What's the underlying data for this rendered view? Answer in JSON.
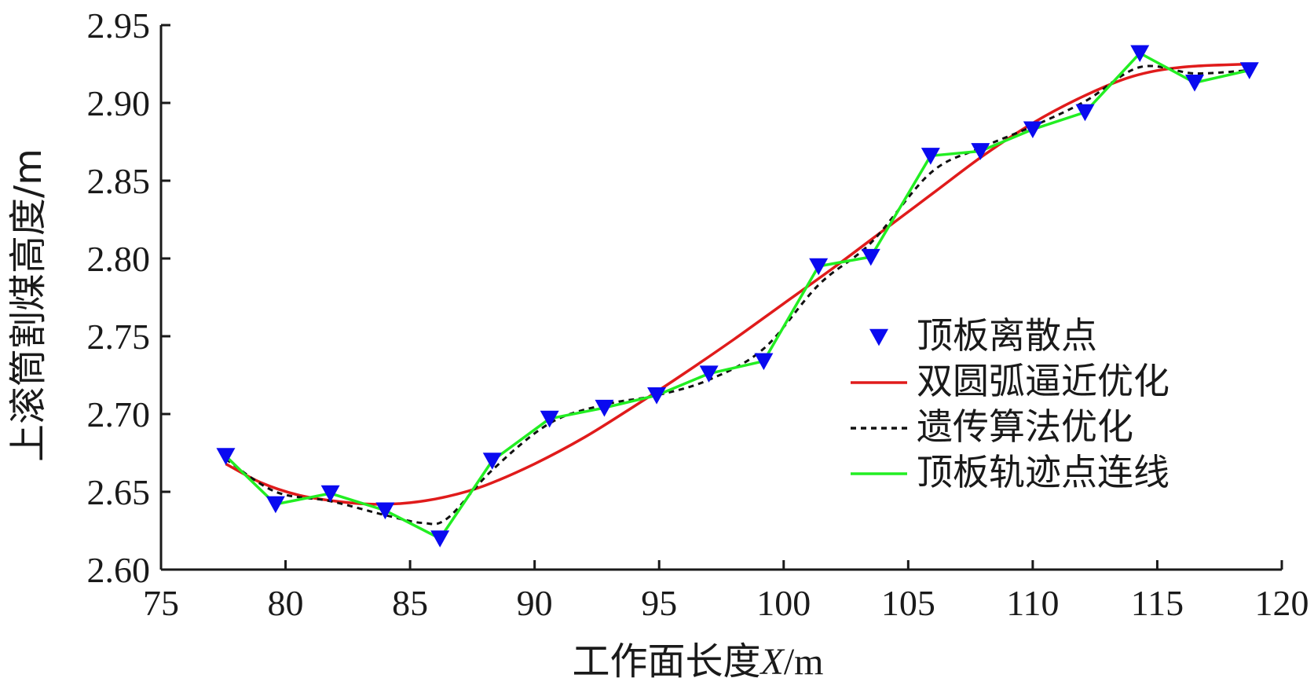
{
  "chart_data": {
    "type": "line",
    "xlabel_main": "工作面长度",
    "xlabel_var": "X",
    "xlabel_unit": "/m",
    "ylabel": "上滚筒割煤高度/m",
    "xlim": [
      75,
      120
    ],
    "ylim": [
      2.6,
      2.95
    ],
    "xticks": [
      "75",
      "80",
      "85",
      "90",
      "95",
      "100",
      "105",
      "110",
      "115",
      "120"
    ],
    "yticks": [
      "2.60",
      "2.65",
      "2.70",
      "2.75",
      "2.80",
      "2.85",
      "2.90",
      "2.95"
    ],
    "grid": false,
    "legend_position": "right",
    "colors": {
      "points": "#0a0af0",
      "double_arc": "#e01b1b",
      "genetic": "#111111",
      "trajectory": "#22ee22",
      "axis": "#1a1a1a"
    },
    "series": [
      {
        "name": "顶板离散点",
        "kind": "scatter",
        "x": [
          77.6,
          79.6,
          81.8,
          84.0,
          86.2,
          88.3,
          90.6,
          92.8,
          94.9,
          97.0,
          99.2,
          101.4,
          103.5,
          105.9,
          107.9,
          110.0,
          112.1,
          114.3,
          116.5,
          118.7
        ],
        "y": [
          2.673,
          2.642,
          2.649,
          2.638,
          2.62,
          2.67,
          2.697,
          2.704,
          2.712,
          2.726,
          2.734,
          2.795,
          2.801,
          2.866,
          2.869,
          2.883,
          2.894,
          2.932,
          2.913,
          2.921
        ]
      },
      {
        "name": "双圆弧逼近优化",
        "kind": "line",
        "x": [
          77.6,
          79.0,
          80.5,
          82.0,
          83.5,
          85.0,
          86.5,
          88.0,
          90.0,
          92.0,
          94.0,
          96.0,
          98.0,
          100.0,
          102.0,
          104.0,
          106.0,
          108.0,
          110.0,
          112.0,
          114.0,
          116.0,
          118.7
        ],
        "y": [
          2.668,
          2.656,
          2.648,
          2.644,
          2.642,
          2.643,
          2.647,
          2.654,
          2.668,
          2.685,
          2.705,
          2.726,
          2.748,
          2.771,
          2.794,
          2.818,
          2.842,
          2.866,
          2.887,
          2.904,
          2.917,
          2.923,
          2.925
        ]
      },
      {
        "name": "遗传算法优化",
        "kind": "line",
        "x": [
          77.6,
          79.6,
          81.8,
          84.0,
          85.5,
          86.5,
          88.3,
          90.6,
          92.8,
          94.9,
          97.0,
          99.2,
          101.4,
          103.5,
          105.9,
          107.9,
          110.0,
          112.1,
          114.3,
          116.5,
          118.7
        ],
        "y": [
          2.671,
          2.65,
          2.644,
          2.635,
          2.63,
          2.633,
          2.664,
          2.694,
          2.706,
          2.712,
          2.722,
          2.742,
          2.783,
          2.81,
          2.855,
          2.871,
          2.885,
          2.901,
          2.923,
          2.919,
          2.921
        ]
      },
      {
        "name": "顶板轨迹点连线",
        "kind": "line",
        "x": [
          77.6,
          79.6,
          81.8,
          84.0,
          86.2,
          88.3,
          90.6,
          92.8,
          94.9,
          97.0,
          99.2,
          101.4,
          103.5,
          105.9,
          107.9,
          110.0,
          112.1,
          114.3,
          116.5,
          118.7
        ],
        "y": [
          2.673,
          2.642,
          2.649,
          2.638,
          2.62,
          2.67,
          2.697,
          2.704,
          2.712,
          2.726,
          2.734,
          2.795,
          2.801,
          2.866,
          2.869,
          2.883,
          2.894,
          2.932,
          2.913,
          2.921
        ]
      }
    ]
  }
}
